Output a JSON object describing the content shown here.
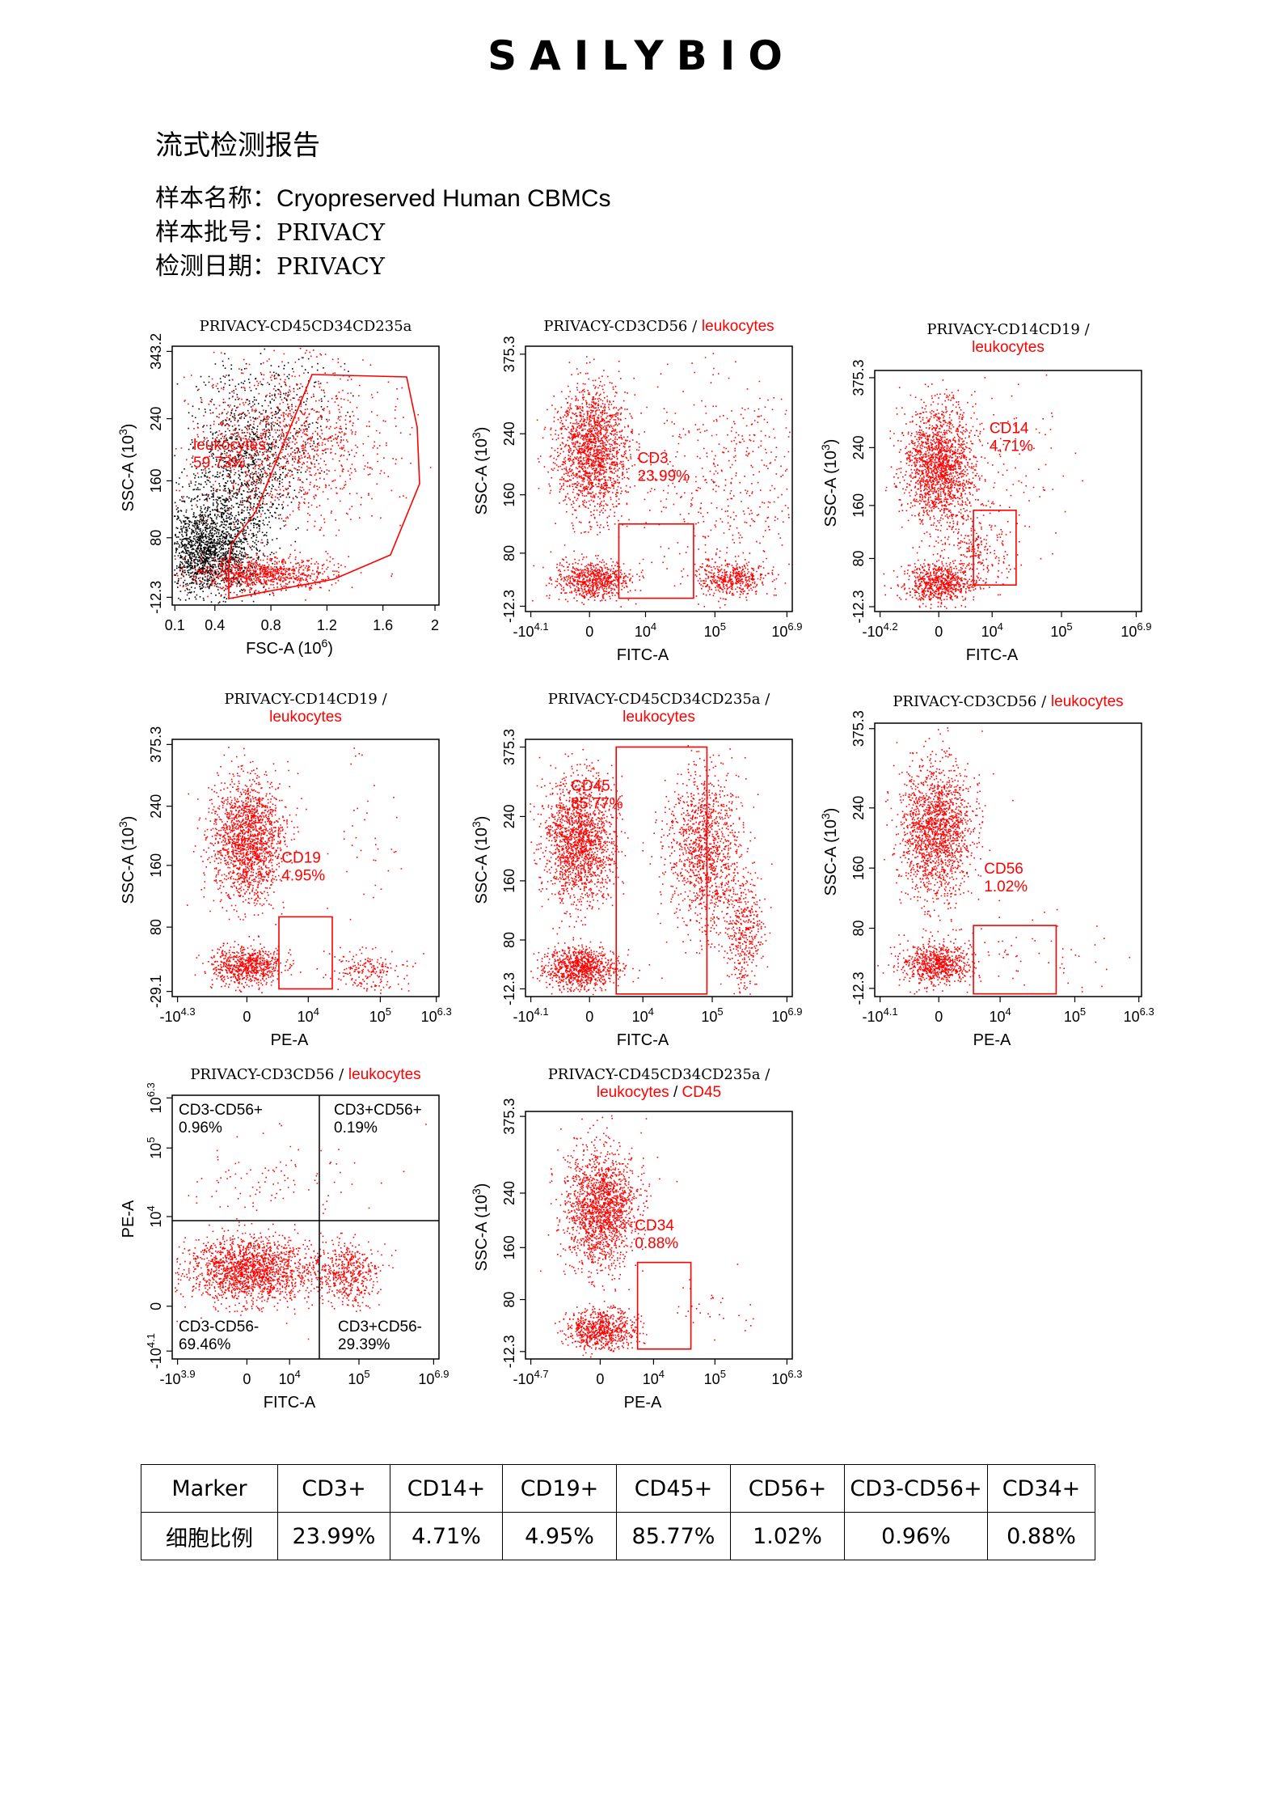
{
  "brand": "SAILYBIO",
  "report_title": "流式检测报告",
  "meta": {
    "sample_name_label": "样本名称：",
    "sample_name": "Cryopreserved Human CBMCs",
    "batch_label": "样本批号：",
    "batch": "PRIVACY",
    "date_label": "检测日期：",
    "date": "PRIVACY"
  },
  "colors": {
    "gate": "#ff0000",
    "events": "#ff0000",
    "ungated": "#000000"
  },
  "chart_data": [
    {
      "type": "scatter",
      "title": "PRIVACY-CD45CD34CD235a",
      "xlabel": "FSC-A (10^6)",
      "ylabel": "SSC-A (10^3)",
      "xticks": [
        "0.1",
        "0.4",
        "0.8",
        "1.2",
        "1.6",
        "2"
      ],
      "yticks": [
        "-12.3",
        "80",
        "160",
        "240",
        "343.2"
      ],
      "gates": [
        {
          "name": "leukocytes",
          "percent": 59.73
        }
      ]
    },
    {
      "type": "scatter",
      "title": "PRIVACY-CD3CD56",
      "title_parent": "leukocytes",
      "xlabel": "FITC-A",
      "ylabel": "SSC-A (10^3)",
      "xticks": [
        "-10^4.1",
        "0",
        "10^4",
        "10^5",
        "10^6.9"
      ],
      "yticks": [
        "-12.3",
        "80",
        "160",
        "240",
        "375.3"
      ],
      "gates": [
        {
          "name": "CD3",
          "percent": 23.99
        }
      ]
    },
    {
      "type": "scatter",
      "title": "PRIVACY-CD14CD19",
      "title_parent": "leukocytes",
      "xlabel": "FITC-A",
      "ylabel": "SSC-A (10^3)",
      "xticks": [
        "-10^4.2",
        "0",
        "10^4",
        "10^5",
        "10^6.9"
      ],
      "yticks": [
        "-12.3",
        "80",
        "160",
        "240",
        "375.3"
      ],
      "gates": [
        {
          "name": "CD14",
          "percent": 4.71
        }
      ]
    },
    {
      "type": "scatter",
      "title": "PRIVACY-CD14CD19",
      "title_parent": "leukocytes",
      "xlabel": "PE-A",
      "ylabel": "SSC-A (10^3)",
      "xticks": [
        "-10^4.3",
        "0",
        "10^4",
        "10^5",
        "10^6.3"
      ],
      "yticks": [
        "-29.1",
        "80",
        "160",
        "240",
        "375.3"
      ],
      "gates": [
        {
          "name": "CD19",
          "percent": 4.95
        }
      ]
    },
    {
      "type": "scatter",
      "title": "PRIVACY-CD45CD34CD235a",
      "title_parent": "leukocytes",
      "xlabel": "FITC-A",
      "ylabel": "SSC-A (10^3)",
      "xticks": [
        "-10^4.1",
        "0",
        "10^4",
        "10^5",
        "10^6.9"
      ],
      "yticks": [
        "-12.3",
        "80",
        "160",
        "240",
        "375.3"
      ],
      "gates": [
        {
          "name": "CD45",
          "percent": 85.77
        }
      ]
    },
    {
      "type": "scatter",
      "title": "PRIVACY-CD3CD56",
      "title_parent": "leukocytes",
      "xlabel": "PE-A",
      "ylabel": "SSC-A (10^3)",
      "xticks": [
        "-10^4.1",
        "0",
        "10^4",
        "10^5",
        "10^6.3"
      ],
      "yticks": [
        "-12.3",
        "80",
        "160",
        "240",
        "375.3"
      ],
      "gates": [
        {
          "name": "CD56",
          "percent": 1.02
        }
      ]
    },
    {
      "type": "scatter",
      "title": "PRIVACY-CD3CD56",
      "title_parent": "leukocytes",
      "xlabel": "FITC-A",
      "ylabel": "PE-A",
      "xticks": [
        "-10^3.9",
        "0",
        "10^4",
        "10^5",
        "10^6.9"
      ],
      "yticks": [
        "-10^4.1",
        "0",
        "10^4",
        "10^5",
        "10^6.3"
      ],
      "quadrants": [
        {
          "name": "CD3-CD56+",
          "percent": 0.96
        },
        {
          "name": "CD3+CD56+",
          "percent": 0.19
        },
        {
          "name": "CD3-CD56-",
          "percent": 69.46
        },
        {
          "name": "CD3+CD56-",
          "percent": 29.39
        }
      ]
    },
    {
      "type": "scatter",
      "title": "PRIVACY-CD45CD34CD235a",
      "title_parent": "leukocytes",
      "title_parent2": "CD45",
      "xlabel": "PE-A",
      "ylabel": "SSC-A (10^3)",
      "xticks": [
        "-10^4.7",
        "0",
        "10^4",
        "10^5",
        "10^6.3"
      ],
      "yticks": [
        "-12.3",
        "80",
        "160",
        "240",
        "375.3"
      ],
      "gates": [
        {
          "name": "CD34",
          "percent": 0.88
        }
      ]
    }
  ],
  "results_table": {
    "header_label": "Marker",
    "row_label": "细胞比例",
    "markers": [
      "CD3+",
      "CD14+",
      "CD19+",
      "CD45+",
      "CD56+",
      "CD3-CD56+",
      "CD34+"
    ],
    "values": [
      "23.99%",
      "4.71%",
      "4.95%",
      "85.77%",
      "1.02%",
      "0.96%",
      "0.88%"
    ]
  }
}
